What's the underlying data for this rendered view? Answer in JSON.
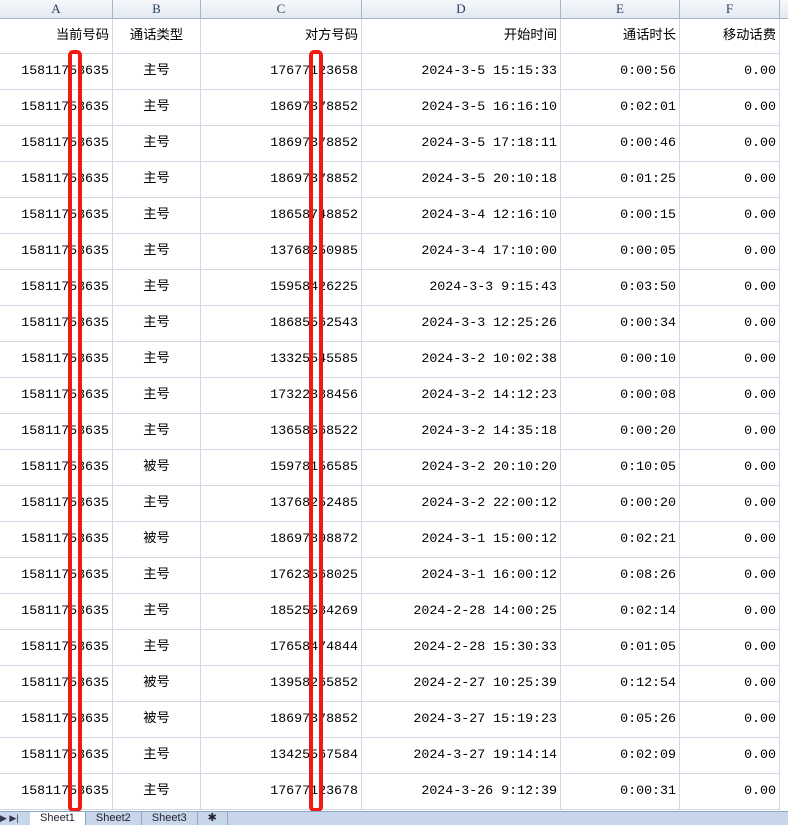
{
  "column_letters": [
    "A",
    "B",
    "C",
    "D",
    "E",
    "F"
  ],
  "headers": [
    "当前号码",
    "通话类型",
    "对方号码",
    "开始时间",
    "通话时长",
    "移动话费"
  ],
  "rows": [
    [
      "15811753635",
      "主号",
      "17677123658",
      "2024-3-5 15:15:33",
      "0:00:56",
      "0.00"
    ],
    [
      "15811753635",
      "主号",
      "18697378852",
      "2024-3-5 16:16:10",
      "0:02:01",
      "0.00"
    ],
    [
      "15811753635",
      "主号",
      "18697378852",
      "2024-3-5 17:18:11",
      "0:00:46",
      "0.00"
    ],
    [
      "15811753635",
      "主号",
      "18697378852",
      "2024-3-5 20:10:18",
      "0:01:25",
      "0.00"
    ],
    [
      "15811753635",
      "主号",
      "18658748852",
      "2024-3-4 12:16:10",
      "0:00:15",
      "0.00"
    ],
    [
      "15811753635",
      "主号",
      "13768250985",
      "2024-3-4 17:10:00",
      "0:00:05",
      "0.00"
    ],
    [
      "15811753635",
      "主号",
      "15958426225",
      "2024-3-3 9:15:43",
      "0:03:50",
      "0.00"
    ],
    [
      "15811753635",
      "主号",
      "18685562543",
      "2024-3-3 12:25:26",
      "0:00:34",
      "0.00"
    ],
    [
      "15811753635",
      "主号",
      "13325545585",
      "2024-3-2 10:02:38",
      "0:00:10",
      "0.00"
    ],
    [
      "15811753635",
      "主号",
      "17322388456",
      "2024-3-2 14:12:23",
      "0:00:08",
      "0.00"
    ],
    [
      "15811753635",
      "主号",
      "13658568522",
      "2024-3-2 14:35:18",
      "0:00:20",
      "0.00"
    ],
    [
      "15811753635",
      "被号",
      "15978156585",
      "2024-3-2 20:10:20",
      "0:10:05",
      "0.00"
    ],
    [
      "15811753635",
      "主号",
      "13768252485",
      "2024-3-2 22:00:12",
      "0:00:20",
      "0.00"
    ],
    [
      "15811753635",
      "被号",
      "18697898872",
      "2024-3-1 15:00:12",
      "0:02:21",
      "0.00"
    ],
    [
      "15811753635",
      "主号",
      "17623568025",
      "2024-3-1 16:00:12",
      "0:08:26",
      "0.00"
    ],
    [
      "15811753635",
      "主号",
      "18525584269",
      "2024-2-28 14:00:25",
      "0:02:14",
      "0.00"
    ],
    [
      "15811753635",
      "主号",
      "17658474844",
      "2024-2-28 15:30:33",
      "0:01:05",
      "0.00"
    ],
    [
      "15811753635",
      "被号",
      "13958265852",
      "2024-2-27 10:25:39",
      "0:12:54",
      "0.00"
    ],
    [
      "15811753635",
      "被号",
      "18697378852",
      "2024-3-27 15:19:23",
      "0:05:26",
      "0.00"
    ],
    [
      "15811753635",
      "主号",
      "13425567584",
      "2024-3-27 19:14:14",
      "0:02:09",
      "0.00"
    ],
    [
      "15811753635",
      "主号",
      "17677123678",
      "2024-3-26 9:12:39",
      "0:00:31",
      "0.00"
    ]
  ],
  "sheet_tabs": [
    "Sheet1",
    "Sheet2",
    "Sheet3"
  ],
  "active_sheet": "Sheet1",
  "colors": {
    "redaction": "#f01a14",
    "gridline": "#d0d7e5",
    "header_bg": "#e4eaf2"
  }
}
